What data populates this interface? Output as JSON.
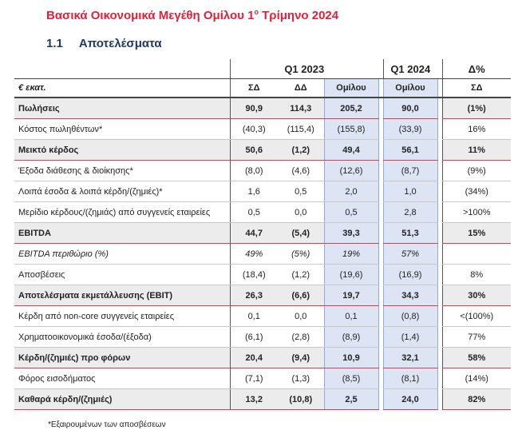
{
  "header": {
    "title": {
      "before": "Βασικά Οικονομικά Μεγέθη Ομίλου 1",
      "sup": "ο",
      "after": " Τρίμηνο 2024"
    },
    "section": {
      "number": "1.1",
      "name": "Αποτελέσματα"
    }
  },
  "table": {
    "groups": [
      "Q1 2023",
      "Q1 2024",
      "Δ%"
    ],
    "unit": "€ εκατ.",
    "columns": [
      "ΣΔ",
      "ΔΔ",
      "Ομίλου",
      "Ομίλου",
      "ΣΔ"
    ],
    "rows": [
      {
        "label": "Πωλήσεις",
        "style": "bold",
        "values": [
          "90,9",
          "114,3",
          "205,2",
          "90,0",
          "(1%)"
        ]
      },
      {
        "label": "Κόστος πωληθέντων*",
        "style": "normal",
        "values": [
          "(40,3)",
          "(115,4)",
          "(155,8)",
          "(33,9)",
          "16%"
        ]
      },
      {
        "label": "Μεικτό κέρδος",
        "style": "bold",
        "values": [
          "50,6",
          "(1,2)",
          "49,4",
          "56,1",
          "11%"
        ]
      },
      {
        "label": "Έξοδα διάθεσης & διοίκησης*",
        "style": "normal",
        "values": [
          "(8,0)",
          "(4,6)",
          "(12,6)",
          "(8,7)",
          "(9%)"
        ]
      },
      {
        "label": "Λοιπά έσοδα & λοιπά κέρδη/(ζημιές)*",
        "style": "normal",
        "values": [
          "1,6",
          "0,5",
          "2,0",
          "1,0",
          "(34%)"
        ]
      },
      {
        "label": "Μερίδιο κέρδους/(ζημιάς) από συγγενείς εταιρείες",
        "style": "normal",
        "values": [
          "0,5",
          "0,0",
          "0,5",
          "2,8",
          ">100%"
        ]
      },
      {
        "label": "EBITDA",
        "style": "bold",
        "values": [
          "44,7",
          "(5,4)",
          "39,3",
          "51,3",
          "15%"
        ]
      },
      {
        "label": "EBITDA περιθώριο (%)",
        "style": "italic",
        "values": [
          "49%",
          "(5%)",
          "19%",
          "57%"
        ]
      },
      {
        "label": "Αποσβέσεις",
        "style": "normal",
        "values": [
          "(18,4)",
          "(1,2)",
          "(19,6)",
          "(16,9)",
          "8%"
        ]
      },
      {
        "label": "Αποτελέσματα εκμετάλλευσης (EBIT)",
        "style": "bold",
        "values": [
          "26,3",
          "(6,6)",
          "19,7",
          "34,3",
          "30%"
        ]
      },
      {
        "label": "Κέρδη από non-core συγγενείς εταιρείες",
        "style": "normal",
        "values": [
          "0,1",
          "0,0",
          "0,1",
          "(0,8)",
          "<(100%)"
        ]
      },
      {
        "label": "Χρηματοοικονομικά έσοδα/(έξοδα)",
        "style": "normal",
        "values": [
          "(6,1)",
          "(2,8)",
          "(8,9)",
          "(1,4)",
          "77%"
        ]
      },
      {
        "label": "Κέρδη/(ζημιές) προ φόρων",
        "style": "bold",
        "values": [
          "20,4",
          "(9,4)",
          "10,9",
          "32,1",
          "58%"
        ]
      },
      {
        "label": "Φόρος εισοδήματος",
        "style": "normal",
        "values": [
          "(7,1)",
          "(1,3)",
          "(8,5)",
          "(8,1)",
          "(14%)"
        ]
      },
      {
        "label": "Καθαρά κέρδη/(ζημιές)",
        "style": "bold",
        "values": [
          "13,2",
          "(10,8)",
          "2,5",
          "24,0",
          "82%"
        ]
      }
    ],
    "footnote": "*Εξαιρουμένων των αποσβέσεων"
  }
}
